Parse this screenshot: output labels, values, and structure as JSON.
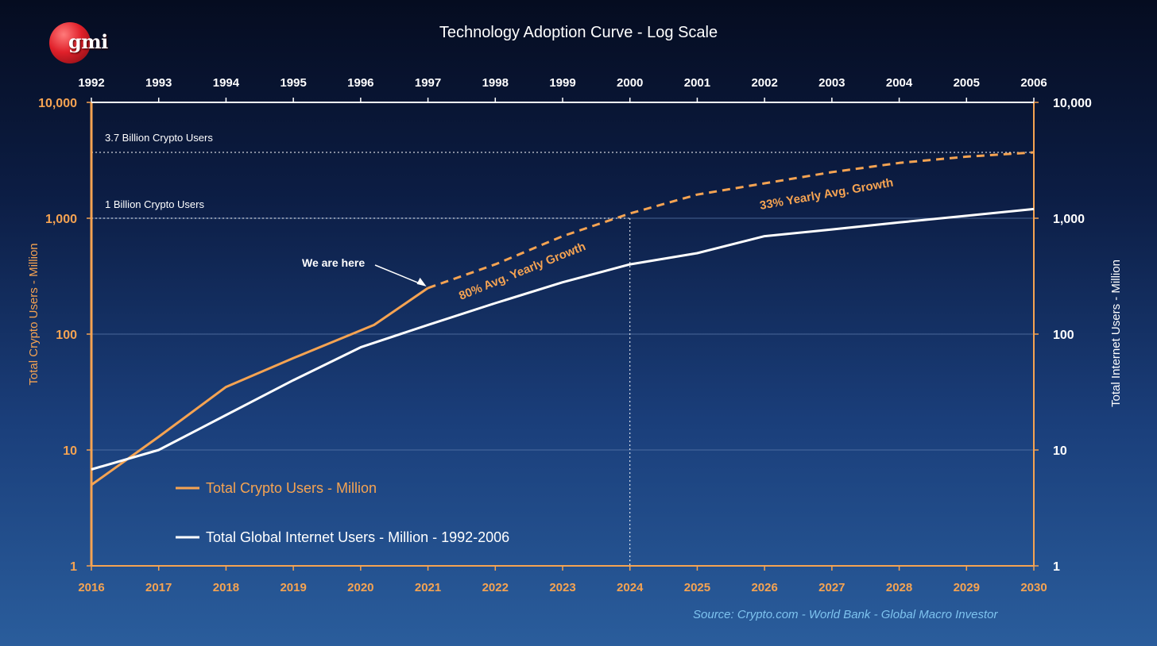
{
  "header": {
    "logo_text": "gmi",
    "title": "Technology Adoption Curve - Log Scale"
  },
  "footer": {
    "source": "Source:    Crypto.com  - World Bank - Global Macro Investor"
  },
  "colors": {
    "crypto": "#f5a352",
    "internet": "#ffffff",
    "axis_orange": "#f5a352",
    "source_text": "#7ec3ef"
  },
  "chart_data": {
    "type": "line",
    "title": "Technology Adoption Curve - Log Scale",
    "y_scale": "log",
    "ylim": [
      1,
      10000
    ],
    "y_ticks": [
      "1",
      "10",
      "100",
      "1,000",
      "10,000"
    ],
    "y2_ticks": [
      "1",
      "10",
      "100",
      "1,000",
      "10,000"
    ],
    "ylabel": "Total Crypto Users - Million",
    "y2label": "Total Internet Users - Million",
    "x_bottom": [
      "2016",
      "2017",
      "2018",
      "2019",
      "2020",
      "2021",
      "2022",
      "2023",
      "2024",
      "2025",
      "2026",
      "2027",
      "2028",
      "2029",
      "2030"
    ],
    "x_top": [
      "1992",
      "1993",
      "1994",
      "1995",
      "1996",
      "1997",
      "1998",
      "1999",
      "2000",
      "2001",
      "2002",
      "2003",
      "2004",
      "2005",
      "2006"
    ],
    "grid": true,
    "legend_position": "bottom-left",
    "series": [
      {
        "name": "Total Crypto Users - Million",
        "axis": "bottom",
        "style": "solid",
        "x": [
          2016,
          2017,
          2018,
          2019,
          2020.2,
          2021
        ],
        "y": [
          5,
          13,
          35,
          62,
          120,
          250
        ]
      },
      {
        "name": "Total Crypto Users - Million",
        "axis": "bottom",
        "style": "dashed",
        "x": [
          2021,
          2022,
          2023,
          2024,
          2025,
          2026,
          2027,
          2028,
          2029,
          2030
        ],
        "y": [
          250,
          400,
          700,
          1100,
          1600,
          2000,
          2500,
          3000,
          3400,
          3700
        ]
      },
      {
        "name": "Total Global Internet Users - Million - 1992-2006",
        "axis": "top",
        "style": "solid",
        "x": [
          1992,
          1993,
          1994,
          1995,
          1996,
          1997,
          1998,
          1999,
          2000,
          2001,
          2002,
          2003,
          2004,
          2005,
          2006
        ],
        "y": [
          6.8,
          10,
          20,
          40,
          77,
          120,
          185,
          280,
          400,
          500,
          700,
          800,
          920,
          1050,
          1200
        ]
      }
    ],
    "legend": [
      {
        "label": "Total Crypto Users - Million",
        "color": "#f5a352"
      },
      {
        "label": "Total Global Internet Users - Million - 1992-2006",
        "color": "#ffffff"
      }
    ],
    "annotations": {
      "ref_high": {
        "label": "3.7 Billion Crypto Users",
        "value": 3700
      },
      "ref_low": {
        "label": "1 Billion Crypto Users",
        "value": 1000
      },
      "vline_year": 2024,
      "we_are_here": {
        "label": "We are here",
        "x": 2021,
        "y": 250
      },
      "growth1": "80% Avg. Yearly Growth",
      "growth2": "33% Yearly Avg. Growth"
    }
  }
}
